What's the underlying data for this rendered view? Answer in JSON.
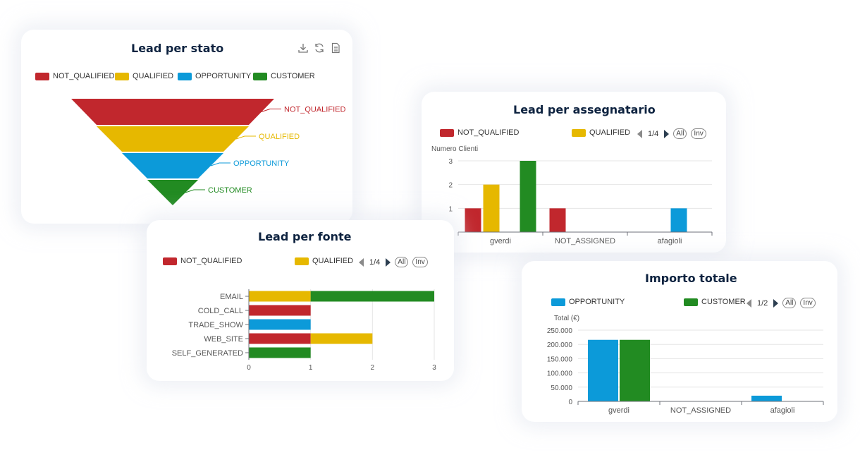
{
  "colors": {
    "NOT_QUALIFIED": "#c1272d",
    "QUALIFIED": "#e6b800",
    "OPPORTUNITY": "#0c9ad9",
    "CUSTOMER": "#228b22"
  },
  "funnel_card": {
    "title": "Lead per stato",
    "toolbox": [
      "download-icon",
      "refresh-icon",
      "data-view-icon"
    ],
    "legend": [
      "NOT_QUALIFIED",
      "QUALIFIED",
      "OPPORTUNITY",
      "CUSTOMER"
    ]
  },
  "assegnatario_card": {
    "title": "Lead per assegnatario",
    "legend": [
      "NOT_QUALIFIED",
      "QUALIFIED"
    ],
    "page": "1/4",
    "all_label": "All",
    "inv_label": "Inv"
  },
  "fonte_card": {
    "title": "Lead per fonte",
    "legend": [
      "NOT_QUALIFIED",
      "QUALIFIED"
    ],
    "page": "1/4",
    "all_label": "All",
    "inv_label": "Inv"
  },
  "importo_card": {
    "title": "Importo totale",
    "legend": [
      "OPPORTUNITY",
      "CUSTOMER"
    ],
    "page": "1/2",
    "all_label": "All",
    "inv_label": "Inv"
  },
  "chart_data": [
    {
      "type": "funnel",
      "title": "Lead per stato",
      "categories": [
        "NOT_QUALIFIED",
        "QUALIFIED",
        "OPPORTUNITY",
        "CUSTOMER"
      ],
      "values": [
        4,
        3,
        2,
        1
      ],
      "legend_position": "top-left"
    },
    {
      "type": "bar",
      "title": "Lead per assegnatario",
      "ylabel": "Numero Clienti",
      "categories": [
        "gverdi",
        "NOT_ASSIGNED",
        "afagioli"
      ],
      "yticks": [
        0,
        1,
        2,
        3
      ],
      "ylim": [
        0,
        3
      ],
      "series": [
        {
          "name": "NOT_QUALIFIED",
          "values": [
            1,
            1,
            0
          ]
        },
        {
          "name": "QUALIFIED",
          "values": [
            2,
            0,
            0
          ]
        },
        {
          "name": "OPPORTUNITY",
          "values": [
            0,
            0,
            1
          ]
        },
        {
          "name": "CUSTOMER",
          "values": [
            3,
            0,
            0
          ]
        }
      ],
      "grid": true,
      "legend_position": "top"
    },
    {
      "type": "bar",
      "orientation": "horizontal",
      "stacked": true,
      "title": "Lead per fonte",
      "categories": [
        "EMAIL",
        "COLD_CALL",
        "TRADE_SHOW",
        "WEB_SITE",
        "SELF_GENERATED"
      ],
      "xticks": [
        0,
        1,
        2,
        3
      ],
      "xlim": [
        0,
        3
      ],
      "series": [
        {
          "name": "NOT_QUALIFIED",
          "values": [
            0,
            1,
            0,
            1,
            0
          ]
        },
        {
          "name": "QUALIFIED",
          "values": [
            1,
            0,
            0,
            1,
            0
          ]
        },
        {
          "name": "OPPORTUNITY",
          "values": [
            0,
            0,
            1,
            0,
            0
          ]
        },
        {
          "name": "CUSTOMER",
          "values": [
            2,
            0,
            0,
            0,
            1
          ]
        }
      ],
      "grid": true,
      "legend_position": "top"
    },
    {
      "type": "bar",
      "title": "Importo totale",
      "ylabel": "Total (€)",
      "categories": [
        "gverdi",
        "NOT_ASSIGNED",
        "afagioli"
      ],
      "yticks": [
        "0",
        "50.000",
        "100.000",
        "150.000",
        "200.000",
        "250.000"
      ],
      "ylim": [
        0,
        250000
      ],
      "series": [
        {
          "name": "OPPORTUNITY",
          "values": [
            216000,
            0,
            20000
          ]
        },
        {
          "name": "CUSTOMER",
          "values": [
            216000,
            0,
            0
          ]
        }
      ],
      "grid": true,
      "legend_position": "top"
    }
  ]
}
